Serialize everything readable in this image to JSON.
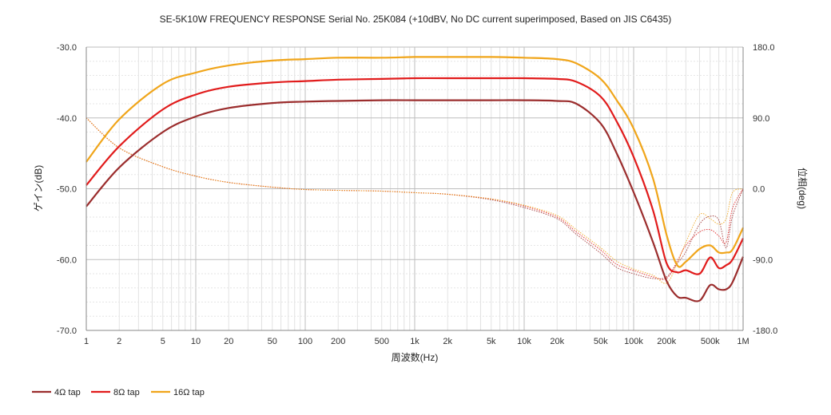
{
  "chart_data": {
    "type": "line",
    "title": "SE-5K10W FREQUENCY RESPONSE Serial No. 25K084 (+10dBV,  No DC current superimposed,  Based on JIS C6435)",
    "xlabel": "周波数(Hz)",
    "ylabel_left": "ゲイン(dB)",
    "ylabel_right": "位相(deg)",
    "x_scale": "log",
    "xlim": [
      1,
      1000000
    ],
    "ylim_left": [
      -70,
      -30
    ],
    "ylim_right": [
      -180,
      180
    ],
    "grid": true,
    "legend_position": "bottom-left",
    "x_ticks": [
      {
        "value": 1,
        "label": "1"
      },
      {
        "value": 2,
        "label": "2"
      },
      {
        "value": 5,
        "label": "5"
      },
      {
        "value": 10,
        "label": "10"
      },
      {
        "value": 20,
        "label": "20"
      },
      {
        "value": 50,
        "label": "50"
      },
      {
        "value": 100,
        "label": "100"
      },
      {
        "value": 200,
        "label": "200"
      },
      {
        "value": 500,
        "label": "500"
      },
      {
        "value": 1000,
        "label": "1k"
      },
      {
        "value": 2000,
        "label": "2k"
      },
      {
        "value": 5000,
        "label": "5k"
      },
      {
        "value": 10000,
        "label": "10k"
      },
      {
        "value": 20000,
        "label": "20k"
      },
      {
        "value": 50000,
        "label": "50k"
      },
      {
        "value": 100000,
        "label": "100k"
      },
      {
        "value": 200000,
        "label": "200k"
      },
      {
        "value": 500000,
        "label": "500k"
      },
      {
        "value": 1000000,
        "label": "1M"
      }
    ],
    "y_ticks_left": [
      {
        "value": -30,
        "label": "-30.0"
      },
      {
        "value": -40,
        "label": "-40.0"
      },
      {
        "value": -50,
        "label": "-50.0"
      },
      {
        "value": -60,
        "label": "-60.0"
      },
      {
        "value": -70,
        "label": "-70.0"
      }
    ],
    "y_ticks_right": [
      {
        "value": 180,
        "label": "180.0"
      },
      {
        "value": 90,
        "label": "90.0"
      },
      {
        "value": 0,
        "label": "0.0"
      },
      {
        "value": -90,
        "label": "-90.0"
      },
      {
        "value": -180,
        "label": "-180.0"
      }
    ],
    "x": [
      1,
      2,
      5,
      10,
      20,
      50,
      100,
      200,
      500,
      1000,
      2000,
      5000,
      10000,
      20000,
      30000,
      50000,
      70000,
      100000,
      150000,
      200000,
      250000,
      300000,
      400000,
      500000,
      600000,
      700000,
      800000,
      1000000
    ],
    "series": [
      {
        "name": "4Ω tap",
        "color": "#9b2d2d",
        "axis": "left",
        "values": [
          -52.5,
          -47.0,
          -42.0,
          -39.8,
          -38.6,
          -37.9,
          -37.7,
          -37.6,
          -37.5,
          -37.5,
          -37.5,
          -37.5,
          -37.5,
          -37.6,
          -38.0,
          -40.8,
          -45.0,
          -50.5,
          -57.5,
          -63.0,
          -65.2,
          -65.4,
          -65.8,
          -63.6,
          -64.2,
          -64.2,
          -63.2,
          -59.6
        ]
      },
      {
        "name": "8Ω tap",
        "color": "#e11b1b",
        "axis": "left",
        "values": [
          -49.5,
          -44.0,
          -38.8,
          -36.7,
          -35.6,
          -35.0,
          -34.8,
          -34.6,
          -34.5,
          -34.4,
          -34.4,
          -34.4,
          -34.4,
          -34.5,
          -34.9,
          -37.0,
          -40.5,
          -45.5,
          -53.0,
          -60.5,
          -61.8,
          -61.5,
          -62.0,
          -59.7,
          -61.2,
          -60.8,
          -60.0,
          -57.0
        ]
      },
      {
        "name": "16Ω tap",
        "color": "#f0a51a",
        "axis": "left",
        "values": [
          -46.2,
          -40.2,
          -35.2,
          -33.6,
          -32.6,
          -31.9,
          -31.7,
          -31.5,
          -31.5,
          -31.4,
          -31.4,
          -31.4,
          -31.5,
          -31.7,
          -32.3,
          -34.5,
          -37.5,
          -41.5,
          -48.5,
          -56.5,
          -60.8,
          -60.3,
          -58.5,
          -58.0,
          -59.0,
          -59.0,
          -58.6,
          -55.5
        ]
      }
    ],
    "phase_series": [
      {
        "color": "#9b2d2d",
        "axis": "right",
        "values": [
          90,
          52,
          28,
          16,
          8,
          2,
          -1,
          -2,
          -3,
          -5,
          -7,
          -14,
          -24,
          -38,
          -58,
          -82,
          -100,
          -108,
          -114,
          -112,
          -95,
          -80,
          -45,
          -35,
          -40,
          -75,
          -35,
          0
        ]
      },
      {
        "color": "#e11b1b",
        "axis": "right",
        "values": [
          90,
          52,
          28,
          16,
          8,
          2,
          -1,
          -2,
          -3,
          -5,
          -7,
          -13,
          -22,
          -36,
          -55,
          -78,
          -96,
          -104,
          -112,
          -114,
          -92,
          -72,
          -55,
          -52,
          -60,
          -68,
          -25,
          0
        ]
      },
      {
        "color": "#f0a51a",
        "axis": "right",
        "values": [
          90,
          52,
          28,
          16,
          8,
          2,
          -1,
          -2,
          -3,
          -5,
          -7,
          -13,
          -21,
          -34,
          -52,
          -75,
          -92,
          -102,
          -110,
          -120,
          -95,
          -68,
          -33,
          -38,
          -45,
          -38,
          -5,
          0
        ]
      }
    ]
  }
}
